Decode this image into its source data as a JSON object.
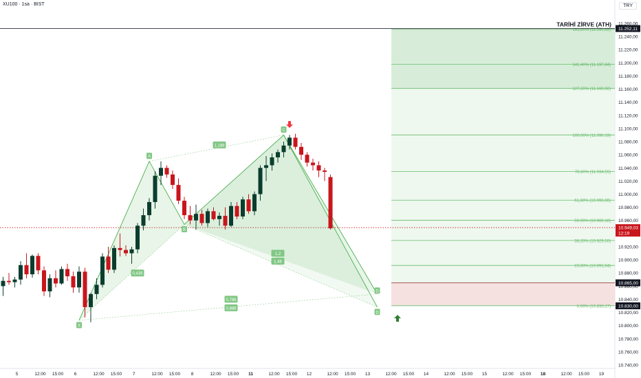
{
  "header": {
    "symbol": "XU100 · 1sa · BIST",
    "currency": "TRY"
  },
  "chart_data": {
    "type": "candlestick",
    "ylim": [
      10740,
      11270
    ],
    "y_ticks": [
      "10.740,00",
      "10.760,00",
      "10.780,00",
      "10.800,00",
      "10.820,00",
      "10.840,00",
      "10.860,00",
      "10.880,00",
      "10.900,00",
      "10.920,00",
      "10.940,00",
      "10.960,00",
      "10.980,00",
      "11.000,00",
      "11.020,00",
      "11.040,00",
      "11.060,00",
      "11.080,00",
      "11.100,00",
      "11.120,00",
      "11.140,00",
      "11.160,00",
      "11.180,00",
      "11.200,00",
      "11.220,00",
      "11.240,00",
      "11.260,00"
    ],
    "y_tick_values": [
      10740,
      10760,
      10780,
      10800,
      10820,
      10840,
      10860,
      10880,
      10900,
      10920,
      10940,
      10960,
      10980,
      11000,
      11020,
      11040,
      11060,
      11080,
      11100,
      11120,
      11140,
      11160,
      11180,
      11200,
      11220,
      11240,
      11260
    ],
    "x_ticks": [
      {
        "i": 0,
        "label": "5",
        "bold": false
      },
      {
        "i": 4,
        "label": "12:00",
        "bold": false
      },
      {
        "i": 7,
        "label": "15:00",
        "bold": false
      },
      {
        "i": 10,
        "label": "6",
        "bold": false
      },
      {
        "i": 14,
        "label": "12:00",
        "bold": false
      },
      {
        "i": 17,
        "label": "15:00",
        "bold": false
      },
      {
        "i": 20,
        "label": "7",
        "bold": false
      },
      {
        "i": 24,
        "label": "12:00",
        "bold": false
      },
      {
        "i": 27,
        "label": "15:00",
        "bold": false
      },
      {
        "i": 30,
        "label": "8",
        "bold": false
      },
      {
        "i": 34,
        "label": "12:00",
        "bold": false
      },
      {
        "i": 37,
        "label": "15:00",
        "bold": false
      },
      {
        "i": 40,
        "label": "11",
        "bold": true
      },
      {
        "i": 44,
        "label": "12:00",
        "bold": false
      },
      {
        "i": 47,
        "label": "15:00",
        "bold": false
      },
      {
        "i": 50,
        "label": "12",
        "bold": false
      },
      {
        "i": 54,
        "label": "12:00",
        "bold": false
      },
      {
        "i": 57,
        "label": "15:00",
        "bold": false
      },
      {
        "i": 60,
        "label": "13",
        "bold": false
      },
      {
        "i": 64,
        "label": "12:00",
        "bold": false
      },
      {
        "i": 67,
        "label": "15:00",
        "bold": false
      },
      {
        "i": 70,
        "label": "14",
        "bold": false
      },
      {
        "i": 74,
        "label": "12:00",
        "bold": false
      },
      {
        "i": 77,
        "label": "15:00",
        "bold": false
      },
      {
        "i": 80,
        "label": "15",
        "bold": false
      },
      {
        "i": 84,
        "label": "12:00",
        "bold": false
      },
      {
        "i": 87,
        "label": "15:00",
        "bold": false
      },
      {
        "i": 90,
        "label": "18",
        "bold": true
      },
      {
        "i": 94,
        "label": "12:00",
        "bold": false
      },
      {
        "i": 97,
        "label": "15:00",
        "bold": false
      },
      {
        "i": 100,
        "label": "19",
        "bold": false
      }
    ],
    "candles": [
      {
        "o": 10860,
        "h": 10874,
        "l": 10845,
        "c": 10868
      },
      {
        "o": 10868,
        "h": 10880,
        "l": 10862,
        "c": 10866
      },
      {
        "o": 10866,
        "h": 10874,
        "l": 10858,
        "c": 10870
      },
      {
        "o": 10870,
        "h": 10898,
        "l": 10862,
        "c": 10892
      },
      {
        "o": 10892,
        "h": 10910,
        "l": 10872,
        "c": 10878
      },
      {
        "o": 10878,
        "h": 10908,
        "l": 10873,
        "c": 10906
      },
      {
        "o": 10906,
        "h": 10910,
        "l": 10878,
        "c": 10884
      },
      {
        "o": 10884,
        "h": 10890,
        "l": 10845,
        "c": 10852
      },
      {
        "o": 10852,
        "h": 10878,
        "l": 10843,
        "c": 10872
      },
      {
        "o": 10872,
        "h": 10884,
        "l": 10858,
        "c": 10864
      },
      {
        "o": 10864,
        "h": 10890,
        "l": 10862,
        "c": 10886
      },
      {
        "o": 10886,
        "h": 10894,
        "l": 10868,
        "c": 10875
      },
      {
        "o": 10875,
        "h": 10882,
        "l": 10850,
        "c": 10858
      },
      {
        "o": 10858,
        "h": 10890,
        "l": 10850,
        "c": 10882
      },
      {
        "o": 10882,
        "h": 10888,
        "l": 10812,
        "c": 10828
      },
      {
        "o": 10828,
        "h": 10850,
        "l": 10805,
        "c": 10848
      },
      {
        "o": 10848,
        "h": 10872,
        "l": 10840,
        "c": 10862
      },
      {
        "o": 10862,
        "h": 10910,
        "l": 10858,
        "c": 10905
      },
      {
        "o": 10905,
        "h": 10920,
        "l": 10880,
        "c": 10885
      },
      {
        "o": 10885,
        "h": 10922,
        "l": 10880,
        "c": 10918
      },
      {
        "o": 10918,
        "h": 10940,
        "l": 10905,
        "c": 10915
      },
      {
        "o": 10915,
        "h": 10922,
        "l": 10906,
        "c": 10910
      },
      {
        "o": 10910,
        "h": 10920,
        "l": 10894,
        "c": 10916
      },
      {
        "o": 10916,
        "h": 10956,
        "l": 10910,
        "c": 10952
      },
      {
        "o": 10952,
        "h": 10978,
        "l": 10945,
        "c": 10968
      },
      {
        "o": 10968,
        "h": 10994,
        "l": 10960,
        "c": 10988
      },
      {
        "o": 10988,
        "h": 11035,
        "l": 10978,
        "c": 11028
      },
      {
        "o": 11028,
        "h": 11050,
        "l": 11014,
        "c": 11040
      },
      {
        "o": 11040,
        "h": 11044,
        "l": 11025,
        "c": 11030
      },
      {
        "o": 11030,
        "h": 11036,
        "l": 11008,
        "c": 11014
      },
      {
        "o": 11014,
        "h": 11024,
        "l": 10985,
        "c": 10990
      },
      {
        "o": 10990,
        "h": 10996,
        "l": 10962,
        "c": 10968
      },
      {
        "o": 10968,
        "h": 10982,
        "l": 10954,
        "c": 10960
      },
      {
        "o": 10960,
        "h": 10984,
        "l": 10946,
        "c": 10970
      },
      {
        "o": 10970,
        "h": 10976,
        "l": 10952,
        "c": 10956
      },
      {
        "o": 10956,
        "h": 10978,
        "l": 10950,
        "c": 10974
      },
      {
        "o": 10974,
        "h": 10980,
        "l": 10960,
        "c": 10962
      },
      {
        "o": 10962,
        "h": 10972,
        "l": 10952,
        "c": 10967
      },
      {
        "o": 10967,
        "h": 10980,
        "l": 10946,
        "c": 10952
      },
      {
        "o": 10952,
        "h": 10988,
        "l": 10950,
        "c": 10982
      },
      {
        "o": 10982,
        "h": 10988,
        "l": 10962,
        "c": 10966
      },
      {
        "o": 10966,
        "h": 10996,
        "l": 10962,
        "c": 10992
      },
      {
        "o": 10992,
        "h": 11000,
        "l": 10970,
        "c": 10974
      },
      {
        "o": 10974,
        "h": 11004,
        "l": 10968,
        "c": 11000
      },
      {
        "o": 11000,
        "h": 11044,
        "l": 10990,
        "c": 11040
      },
      {
        "o": 11040,
        "h": 11058,
        "l": 11020,
        "c": 11044
      },
      {
        "o": 11044,
        "h": 11062,
        "l": 11036,
        "c": 11056
      },
      {
        "o": 11056,
        "h": 11068,
        "l": 11048,
        "c": 11064
      },
      {
        "o": 11064,
        "h": 11080,
        "l": 11056,
        "c": 11074
      },
      {
        "o": 11074,
        "h": 11090,
        "l": 11068,
        "c": 11086
      },
      {
        "o": 11086,
        "h": 11092,
        "l": 11068,
        "c": 11072
      },
      {
        "o": 11072,
        "h": 11078,
        "l": 11052,
        "c": 11060
      },
      {
        "o": 11060,
        "h": 11064,
        "l": 11042,
        "c": 11048
      },
      {
        "o": 11048,
        "h": 11054,
        "l": 11036,
        "c": 11044
      },
      {
        "o": 11044,
        "h": 11050,
        "l": 11026,
        "c": 11036
      },
      {
        "o": 11036,
        "h": 11040,
        "l": 11020,
        "c": 11034
      },
      {
        "o": 11026,
        "h": 11030,
        "l": 10946,
        "c": 10948
      }
    ],
    "pattern": {
      "points": [
        {
          "label": "X",
          "idx": 13,
          "price": 10808
        },
        {
          "label": "A",
          "idx": 25,
          "price": 11050
        },
        {
          "label": "B",
          "idx": 31,
          "price": 10954
        },
        {
          "label": "C",
          "idx": 48,
          "price": 11090
        },
        {
          "label": "D",
          "idx": 64,
          "price": 10848
        },
        {
          "label": "D",
          "idx": 64,
          "price": 10828
        }
      ],
      "ratios": [
        {
          "text": "1,188",
          "idx": 37,
          "price": 11075
        },
        {
          "text": "0,435",
          "idx": 23,
          "price": 10880
        },
        {
          "text": "1,2",
          "idx": 47,
          "price": 10910
        },
        {
          "text": "1,46",
          "idx": 47,
          "price": 10898
        },
        {
          "text": "0,786",
          "idx": 39,
          "price": 10840
        },
        {
          "text": "0,886",
          "idx": 39,
          "price": 10827
        }
      ]
    },
    "fib_levels": [
      {
        "label": "161,80% (11.250,85)",
        "price": 11250.85
      },
      {
        "label": "141,40% (11.197,84)",
        "price": 11197.84
      },
      {
        "label": "127,20% (11.160,92)",
        "price": 11160.92
      },
      {
        "label": "100,00% (11.090,19)",
        "price": 11090.19
      },
      {
        "label": "78,60% (11.034,55)",
        "price": 11034.55
      },
      {
        "label": "61,80% (10.990,86)",
        "price": 10990.86
      },
      {
        "label": "50,00% (10.960,18)",
        "price": 10960.18
      },
      {
        "label": "38,20% (10.929,50)",
        "price": 10929.5
      },
      {
        "label": "23,60% (10.891,54)",
        "price": 10891.54
      },
      {
        "label": "0,00% (10.830,17)",
        "price": 10830.17
      }
    ],
    "ath": {
      "label": "TARİHİ ZİRVE (ATH)",
      "price": 11252.11,
      "price_label": "11.252,11"
    },
    "current": {
      "price": 10949.03,
      "price_label": "10.949,03",
      "time_label": "12:19"
    },
    "price_tags": [
      {
        "price": 10865.0,
        "label": "10.865,00"
      },
      {
        "price": 10830.0,
        "label": "10.830,00"
      }
    ],
    "colors": {
      "up": "#089981",
      "up_body": "#0b3d2e",
      "down": "#c8161d",
      "pattern": "#4caf50",
      "fib": "#66bb6a",
      "ath_line": "#434651",
      "current": "#c8161d"
    }
  }
}
